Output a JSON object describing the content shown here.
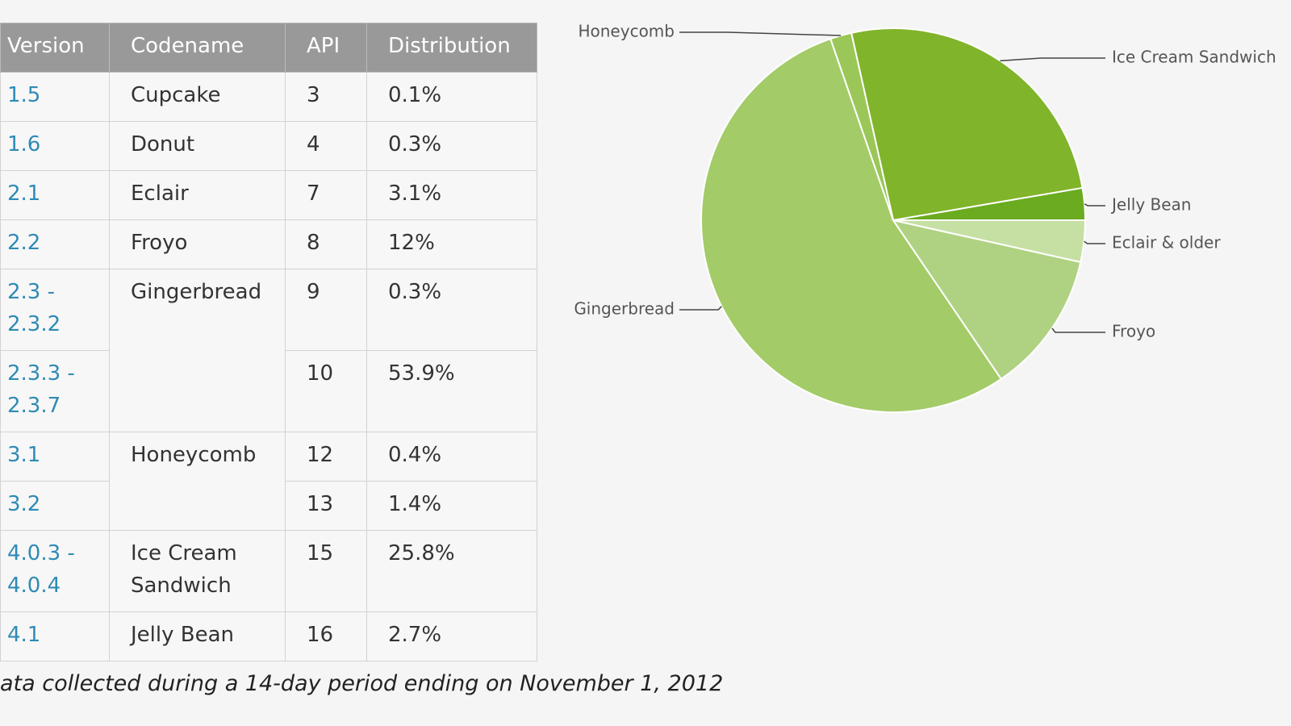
{
  "table": {
    "columns": [
      "Version",
      "Codename",
      "API",
      "Distribution"
    ],
    "groups": [
      {
        "codename": "Cupcake",
        "versions": [
          {
            "version": "1.5",
            "api": "3",
            "distribution": "0.1%"
          }
        ]
      },
      {
        "codename": "Donut",
        "versions": [
          {
            "version": "1.6",
            "api": "4",
            "distribution": "0.3%"
          }
        ]
      },
      {
        "codename": "Eclair",
        "versions": [
          {
            "version": "2.1",
            "api": "7",
            "distribution": "3.1%"
          }
        ]
      },
      {
        "codename": "Froyo",
        "versions": [
          {
            "version": "2.2",
            "api": "8",
            "distribution": "12%"
          }
        ]
      },
      {
        "codename": "Gingerbread",
        "versions": [
          {
            "version": "2.3 - 2.3.2",
            "api": "9",
            "distribution": "0.3%"
          },
          {
            "version": "2.3.3 - 2.3.7",
            "api": "10",
            "distribution": "53.9%"
          }
        ]
      },
      {
        "codename": "Honeycomb",
        "versions": [
          {
            "version": "3.1",
            "api": "12",
            "distribution": "0.4%"
          },
          {
            "version": "3.2",
            "api": "13",
            "distribution": "1.4%"
          }
        ]
      },
      {
        "codename": "Ice Cream Sandwich",
        "versions": [
          {
            "version": "4.0.3 - 4.0.4",
            "api": "15",
            "distribution": "25.8%"
          }
        ]
      },
      {
        "codename": "Jelly Bean",
        "versions": [
          {
            "version": "4.1",
            "api": "16",
            "distribution": "2.7%"
          }
        ]
      }
    ],
    "footnote": "ata collected during a 14-day period ending on November 1, 2012"
  },
  "chart_data": {
    "type": "pie",
    "categories": [
      "Jelly Bean",
      "Ice Cream Sandwich",
      "Honeycomb",
      "Gingerbread",
      "Froyo",
      "Eclair & older"
    ],
    "values": [
      2.7,
      25.8,
      1.8,
      54.2,
      12,
      3.5
    ],
    "colors": [
      "#6aab1f",
      "#80b42a",
      "#9ac757",
      "#a3cb68",
      "#afd282",
      "#c6e0a4"
    ]
  }
}
